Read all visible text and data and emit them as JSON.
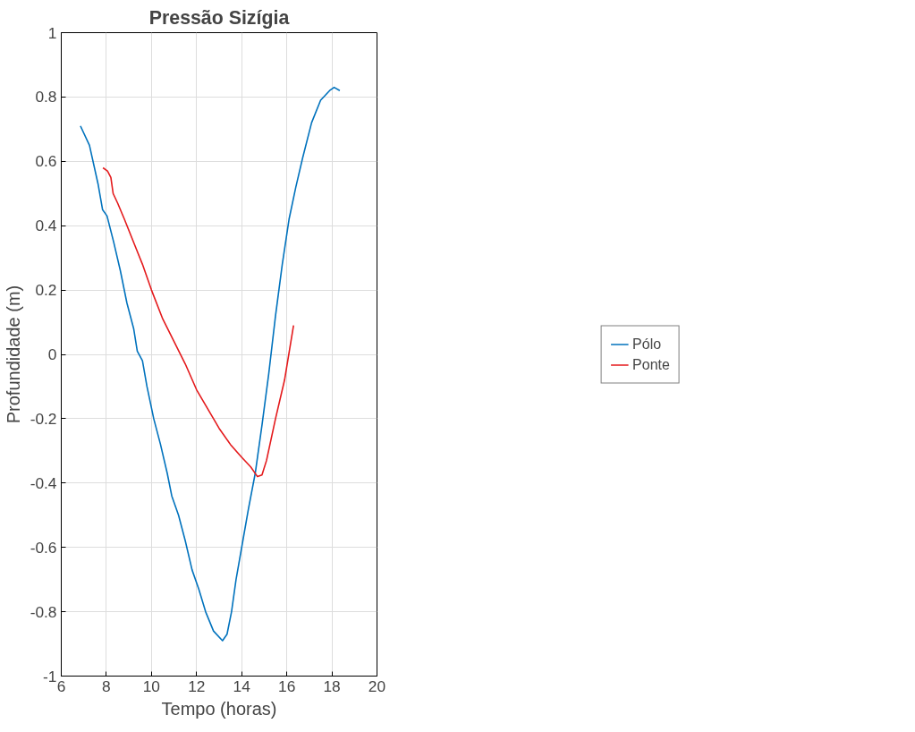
{
  "chart_data": {
    "type": "line",
    "title": "Pressão Sizígia",
    "xlabel": "Tempo (horas)",
    "ylabel": "Profundidade (m)",
    "xlim": [
      6,
      20
    ],
    "xticks": [
      6,
      8,
      10,
      12,
      14,
      16,
      18,
      20
    ],
    "ylim": [
      -1,
      1
    ],
    "yticks": [
      -1,
      -0.8,
      -0.6,
      -0.4,
      -0.2,
      0,
      0.2,
      0.4,
      0.6,
      0.8,
      1
    ],
    "grid": true,
    "legend": "right",
    "series": [
      {
        "name": "Pólo",
        "color": "#0072bd",
        "x": [
          6.85,
          7.25,
          7.63,
          7.83,
          8.03,
          8.32,
          8.62,
          8.91,
          9.21,
          9.37,
          9.6,
          9.8,
          10.1,
          10.4,
          10.7,
          10.9,
          11.2,
          11.5,
          11.8,
          12.1,
          12.4,
          12.75,
          13.15,
          13.35,
          13.55,
          13.75,
          14.05,
          14.3,
          14.6,
          14.9,
          15.2,
          15.5,
          15.8,
          16.1,
          16.4,
          16.7,
          17.1,
          17.5,
          17.9,
          18.1,
          18.35
        ],
        "values": [
          0.71,
          0.65,
          0.53,
          0.45,
          0.43,
          0.35,
          0.26,
          0.16,
          0.08,
          0.01,
          -0.02,
          -0.1,
          -0.2,
          -0.28,
          -0.37,
          -0.44,
          -0.5,
          -0.58,
          -0.67,
          -0.73,
          -0.8,
          -0.86,
          -0.89,
          -0.87,
          -0.8,
          -0.7,
          -0.58,
          -0.48,
          -0.37,
          -0.22,
          -0.06,
          0.12,
          0.28,
          0.42,
          0.52,
          0.61,
          0.72,
          0.79,
          0.82,
          0.83,
          0.82
        ]
      },
      {
        "name": "Ponte",
        "color": "#e41a1c",
        "x": [
          7.85,
          8.05,
          8.2,
          8.3,
          8.5,
          8.8,
          9.2,
          9.6,
          10.0,
          10.5,
          11.0,
          11.5,
          12.0,
          12.5,
          13.0,
          13.5,
          14.0,
          14.4,
          14.7,
          14.9,
          15.1,
          15.5,
          15.9,
          16.3
        ],
        "values": [
          0.58,
          0.57,
          0.55,
          0.5,
          0.47,
          0.42,
          0.35,
          0.28,
          0.2,
          0.11,
          0.04,
          -0.03,
          -0.11,
          -0.17,
          -0.23,
          -0.28,
          -0.32,
          -0.35,
          -0.38,
          -0.375,
          -0.33,
          -0.2,
          -0.08,
          0.09
        ]
      }
    ]
  }
}
